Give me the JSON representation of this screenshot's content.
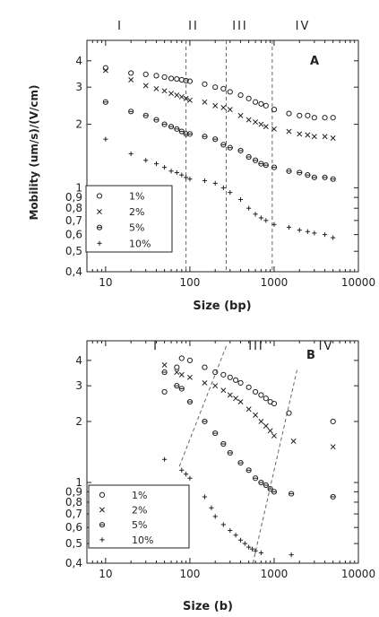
{
  "chart_data": [
    {
      "type": "scatter",
      "panel_label": "A",
      "xlabel": "Size (bp)",
      "ylabel": "Mobility (um/s)/(V/cm)",
      "xscale": "log",
      "yscale": "log",
      "xlim": [
        6,
        10000
      ],
      "ylim": [
        0.4,
        5
      ],
      "xticks": [
        10,
        100,
        1000,
        10000
      ],
      "xtick_labels": [
        "10",
        "100",
        "1000",
        "10000"
      ],
      "yticks": [
        0.4,
        0.5,
        0.6,
        0.7,
        0.8,
        0.9,
        1,
        2,
        3,
        4
      ],
      "ytick_labels": [
        "0,4",
        "0,5",
        "0,6",
        "0,7",
        "0,8",
        "0,9",
        "1",
        "2",
        "3",
        "4"
      ],
      "regions": [
        "I",
        "II",
        "III",
        "IV"
      ],
      "guide_lines": [
        {
          "type": "vertical",
          "x": 90
        },
        {
          "type": "vertical",
          "x": 270
        },
        {
          "type": "vertical",
          "x": 950
        }
      ],
      "legend": {
        "placement": "bottom-left"
      },
      "series": [
        {
          "name": "1%",
          "marker": "circle",
          "x": [
            10,
            20,
            30,
            40,
            50,
            60,
            70,
            80,
            90,
            100,
            150,
            200,
            250,
            300,
            400,
            500,
            600,
            700,
            800,
            1000,
            1500,
            2000,
            2500,
            3000,
            4000,
            5000
          ],
          "y": [
            3.7,
            3.5,
            3.45,
            3.4,
            3.35,
            3.3,
            3.28,
            3.25,
            3.22,
            3.2,
            3.1,
            3.0,
            2.95,
            2.85,
            2.75,
            2.65,
            2.55,
            2.5,
            2.45,
            2.35,
            2.25,
            2.2,
            2.2,
            2.15,
            2.15,
            2.15
          ]
        },
        {
          "name": "2%",
          "marker": "x",
          "x": [
            10,
            20,
            30,
            40,
            50,
            60,
            70,
            80,
            90,
            100,
            150,
            200,
            250,
            300,
            400,
            500,
            600,
            700,
            800,
            1000,
            1500,
            2000,
            2500,
            3000,
            4000,
            5000
          ],
          "y": [
            3.6,
            3.25,
            3.05,
            2.95,
            2.88,
            2.8,
            2.75,
            2.7,
            2.65,
            2.6,
            2.55,
            2.45,
            2.4,
            2.35,
            2.2,
            2.1,
            2.05,
            2.0,
            1.95,
            1.9,
            1.85,
            1.8,
            1.78,
            1.75,
            1.75,
            1.72
          ]
        },
        {
          "name": "5%",
          "marker": "circle-cross",
          "x": [
            10,
            20,
            30,
            40,
            50,
            60,
            70,
            80,
            90,
            100,
            150,
            200,
            250,
            300,
            400,
            500,
            600,
            700,
            800,
            1000,
            1500,
            2000,
            2500,
            3000,
            4000,
            5000
          ],
          "y": [
            2.55,
            2.3,
            2.2,
            2.1,
            2.0,
            1.95,
            1.9,
            1.85,
            1.8,
            1.8,
            1.75,
            1.7,
            1.6,
            1.55,
            1.5,
            1.4,
            1.35,
            1.3,
            1.28,
            1.25,
            1.2,
            1.18,
            1.15,
            1.12,
            1.12,
            1.1
          ]
        },
        {
          "name": "10%",
          "marker": "plus",
          "x": [
            10,
            20,
            30,
            40,
            50,
            60,
            70,
            80,
            90,
            100,
            150,
            200,
            250,
            300,
            400,
            500,
            600,
            700,
            800,
            1000,
            1500,
            2000,
            2500,
            3000,
            4000,
            5000
          ],
          "y": [
            1.7,
            1.45,
            1.35,
            1.3,
            1.25,
            1.2,
            1.18,
            1.15,
            1.12,
            1.1,
            1.08,
            1.05,
            1.0,
            0.95,
            0.88,
            0.8,
            0.75,
            0.72,
            0.7,
            0.67,
            0.65,
            0.63,
            0.62,
            0.61,
            0.6,
            0.58
          ]
        }
      ]
    },
    {
      "type": "scatter",
      "panel_label": "B",
      "xlabel": "Size (b)",
      "ylabel": "",
      "xscale": "log",
      "yscale": "log",
      "xlim": [
        6,
        10000
      ],
      "ylim": [
        0.4,
        5
      ],
      "xticks": [
        10,
        100,
        1000,
        10000
      ],
      "xtick_labels": [
        "10",
        "100",
        "1000",
        "10000"
      ],
      "yticks": [
        0.4,
        0.5,
        0.6,
        0.7,
        0.8,
        0.9,
        1,
        2,
        3,
        4
      ],
      "ytick_labels": [
        "0,4",
        "0,5",
        "0,6",
        "0,7",
        "0,8",
        "0,9",
        "1",
        "2",
        "3",
        "4"
      ],
      "regions": [
        "I",
        "III",
        "IV"
      ],
      "guide_lines": [
        {
          "type": "segment",
          "x1": 75,
          "y1": 1.2,
          "x2": 270,
          "y2": 4.7
        },
        {
          "type": "segment",
          "x1": 560,
          "y1": 0.4,
          "x2": 1900,
          "y2": 3.7
        }
      ],
      "legend": {
        "placement": "bottom-left"
      },
      "series": [
        {
          "name": "1%",
          "marker": "circle",
          "x": [
            50,
            70,
            80,
            100,
            150,
            200,
            250,
            300,
            350,
            400,
            500,
            600,
            700,
            800,
            900,
            1000,
            1500,
            5000
          ],
          "y": [
            2.8,
            3.7,
            4.1,
            4.0,
            3.7,
            3.5,
            3.4,
            3.3,
            3.2,
            3.1,
            2.95,
            2.8,
            2.7,
            2.6,
            2.5,
            2.45,
            2.2,
            2.0
          ]
        },
        {
          "name": "2%",
          "marker": "x",
          "x": [
            50,
            70,
            80,
            100,
            150,
            200,
            250,
            300,
            350,
            400,
            500,
            600,
            700,
            800,
            900,
            1000,
            1700,
            5000
          ],
          "y": [
            3.8,
            3.5,
            3.4,
            3.3,
            3.1,
            3.0,
            2.85,
            2.7,
            2.6,
            2.5,
            2.3,
            2.15,
            2.0,
            1.9,
            1.8,
            1.7,
            1.6,
            1.5
          ]
        },
        {
          "name": "5%",
          "marker": "circle-cross",
          "x": [
            50,
            70,
            80,
            100,
            150,
            200,
            250,
            300,
            400,
            500,
            600,
            700,
            800,
            900,
            1000,
            1600,
            5000
          ],
          "y": [
            3.5,
            3.0,
            2.9,
            2.5,
            2.0,
            1.75,
            1.55,
            1.4,
            1.25,
            1.15,
            1.05,
            1.0,
            0.97,
            0.93,
            0.9,
            0.88,
            0.85
          ]
        },
        {
          "name": "10%",
          "marker": "plus",
          "x": [
            50,
            80,
            90,
            100,
            150,
            180,
            200,
            250,
            300,
            350,
            400,
            450,
            500,
            550,
            600,
            700,
            1600
          ],
          "y": [
            1.3,
            1.15,
            1.1,
            1.05,
            0.85,
            0.75,
            0.68,
            0.62,
            0.58,
            0.55,
            0.52,
            0.5,
            0.48,
            0.47,
            0.46,
            0.45,
            0.44
          ]
        }
      ]
    }
  ]
}
